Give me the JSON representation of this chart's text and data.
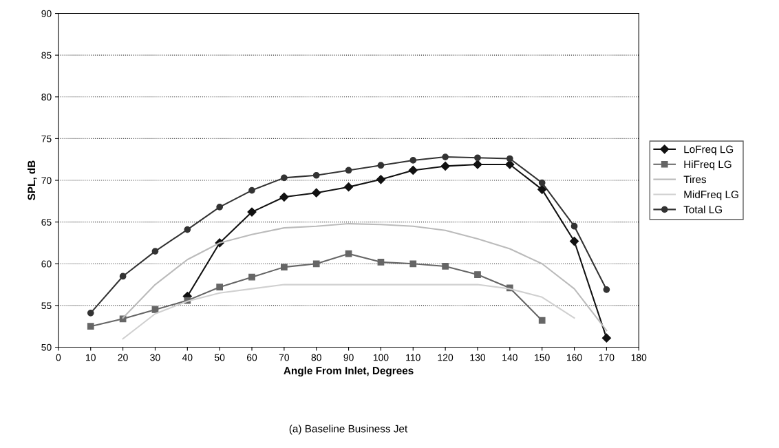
{
  "chart_data": {
    "type": "line",
    "xlabel": "Angle From Inlet, Degrees",
    "ylabel": "SPL, dB",
    "annotations": [
      "(a) Baseline Business Jet"
    ],
    "x": [
      10,
      20,
      30,
      40,
      50,
      60,
      70,
      80,
      90,
      100,
      110,
      120,
      130,
      140,
      150,
      160,
      170
    ],
    "xlim": [
      0,
      180
    ],
    "xticks": [
      0,
      10,
      20,
      30,
      40,
      50,
      60,
      70,
      80,
      90,
      100,
      110,
      120,
      130,
      140,
      150,
      160,
      170,
      180
    ],
    "ylim": [
      50,
      90
    ],
    "yticks": [
      50,
      55,
      60,
      65,
      70,
      75,
      80,
      85,
      90
    ],
    "grid": "y",
    "legend": "right",
    "series": [
      {
        "name": "LoFreq LG",
        "color": "#111111",
        "marker": "diamond",
        "values": [
          null,
          null,
          null,
          56.1,
          62.5,
          66.2,
          68.0,
          68.5,
          69.2,
          70.1,
          71.2,
          71.7,
          71.9,
          71.9,
          68.9,
          62.7,
          51.1
        ]
      },
      {
        "name": "HiFreq LG",
        "color": "#666666",
        "marker": "square",
        "values": [
          52.5,
          53.4,
          54.5,
          55.6,
          57.2,
          58.4,
          59.6,
          60.0,
          61.2,
          60.2,
          60.0,
          59.7,
          58.7,
          57.1,
          53.2,
          null,
          null
        ]
      },
      {
        "name": "Tires",
        "color": "#bbbbbb",
        "marker": "none",
        "values": [
          null,
          53.5,
          57.5,
          60.5,
          62.5,
          63.5,
          64.3,
          64.5,
          64.8,
          64.7,
          64.5,
          64.0,
          63.0,
          61.8,
          60.0,
          57.0,
          52.0
        ]
      },
      {
        "name": "MidFreq LG",
        "color": "#d0d0d0",
        "marker": "none",
        "values": [
          null,
          51.0,
          54.0,
          55.5,
          56.5,
          57.0,
          57.5,
          57.5,
          57.5,
          57.5,
          57.5,
          57.5,
          57.5,
          57.0,
          56.0,
          53.5,
          null
        ]
      },
      {
        "name": "Total LG",
        "color": "#333333",
        "marker": "circle",
        "values": [
          54.1,
          58.5,
          61.5,
          64.1,
          66.8,
          68.8,
          70.3,
          70.6,
          71.2,
          71.8,
          72.4,
          72.8,
          72.7,
          72.6,
          69.7,
          64.5,
          56.9
        ]
      }
    ]
  }
}
